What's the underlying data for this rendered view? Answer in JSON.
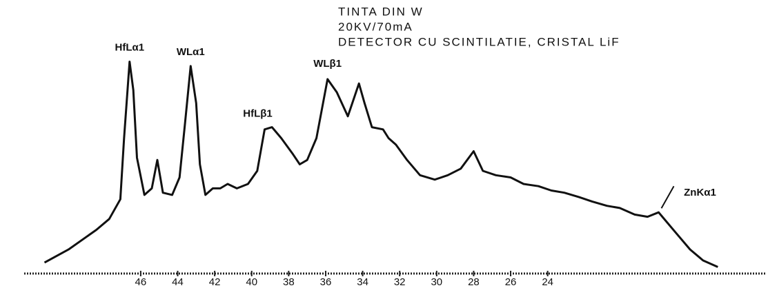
{
  "chart_data": {
    "type": "line",
    "title_lines": [
      "TINTA DIN W",
      "20KV/70mA",
      "DETECTOR CU SCINTILATIE, CRISTAL LiF"
    ],
    "xlim": [
      52.3,
      12.2
    ],
    "ylim": [
      0,
      100
    ],
    "xticks": [
      46,
      44,
      42,
      40,
      38,
      36,
      34,
      32,
      30,
      28,
      26,
      24
    ],
    "color": "#111111",
    "series": [
      {
        "x": [
          51.2,
          49.9,
          48.4,
          47.7,
          47.1,
          46.9,
          46.6,
          46.4,
          46.2,
          45.8,
          45.4,
          45.1,
          44.8,
          44.3,
          43.9,
          43.6,
          43.3,
          43.0,
          42.8,
          42.5,
          42.1,
          41.7,
          41.3,
          40.8,
          40.2,
          39.7,
          39.3,
          38.9,
          38.4,
          37.8,
          37.4,
          37.0,
          36.5,
          35.9,
          35.4,
          34.8,
          34.2,
          33.9,
          33.5,
          32.9,
          32.6,
          32.2,
          31.6,
          30.9,
          30.1,
          29.4,
          28.7,
          28.0,
          27.5,
          26.8,
          26.0,
          25.3,
          24.5,
          23.8,
          23.1,
          22.3,
          21.6,
          20.8,
          20.1,
          19.3,
          18.6,
          18.0,
          17.8,
          17.1,
          16.3,
          15.6,
          14.8
        ],
        "values": [
          5,
          11,
          20,
          25,
          34,
          62,
          97,
          84,
          53,
          36,
          39,
          52,
          37,
          36,
          44,
          69,
          95,
          78,
          50,
          36,
          39,
          39,
          41,
          39,
          41,
          47,
          66,
          67,
          62,
          55,
          50,
          52,
          62,
          89,
          83,
          72,
          87,
          78,
          67,
          66,
          62,
          59,
          52,
          45,
          43,
          45,
          48,
          56,
          47,
          45,
          44,
          41,
          40,
          38,
          37,
          35,
          33,
          31,
          30,
          27,
          26,
          28,
          26,
          19,
          11,
          6,
          3
        ]
      }
    ],
    "annotations": [
      {
        "text": "HfLα1",
        "x": 46.6,
        "y": 97
      },
      {
        "text": "WLα1",
        "x": 43.3,
        "y": 95
      },
      {
        "text": "HfLβ1",
        "x": 39.3,
        "y": 66
      },
      {
        "text": "WLβ1",
        "x": 35.9,
        "y": 89
      },
      {
        "text": "ZnKα1",
        "x": 18.0,
        "y": 28
      }
    ]
  }
}
